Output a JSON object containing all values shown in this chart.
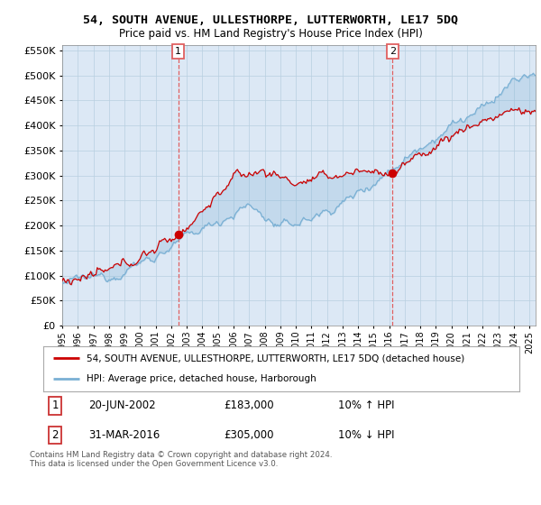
{
  "title": "54, SOUTH AVENUE, ULLESTHORPE, LUTTERWORTH, LE17 5DQ",
  "subtitle": "Price paid vs. HM Land Registry's House Price Index (HPI)",
  "legend_line1": "54, SOUTH AVENUE, ULLESTHORPE, LUTTERWORTH, LE17 5DQ (detached house)",
  "legend_line2": "HPI: Average price, detached house, Harborough",
  "annotation1_date": "20-JUN-2002",
  "annotation1_price": "£183,000",
  "annotation1_hpi": "10% ↑ HPI",
  "annotation2_date": "31-MAR-2016",
  "annotation2_price": "£305,000",
  "annotation2_hpi": "10% ↓ HPI",
  "footer": "Contains HM Land Registry data © Crown copyright and database right 2024.\nThis data is licensed under the Open Government Licence v3.0.",
  "red_color": "#cc0000",
  "blue_color": "#7ab0d4",
  "plot_bg_color": "#dce8f5",
  "background_color": "#ffffff",
  "grid_color": "#b8cfe0",
  "vline_color": "#e06060",
  "ylim": [
    0,
    560000
  ],
  "yticks": [
    0,
    50000,
    100000,
    150000,
    200000,
    250000,
    300000,
    350000,
    400000,
    450000,
    500000,
    550000
  ],
  "sale1_t": 2002.458,
  "sale1_y": 183000,
  "sale2_t": 2016.208,
  "sale2_y": 305000,
  "xlim_start": 1995.0,
  "xlim_end": 2025.4
}
